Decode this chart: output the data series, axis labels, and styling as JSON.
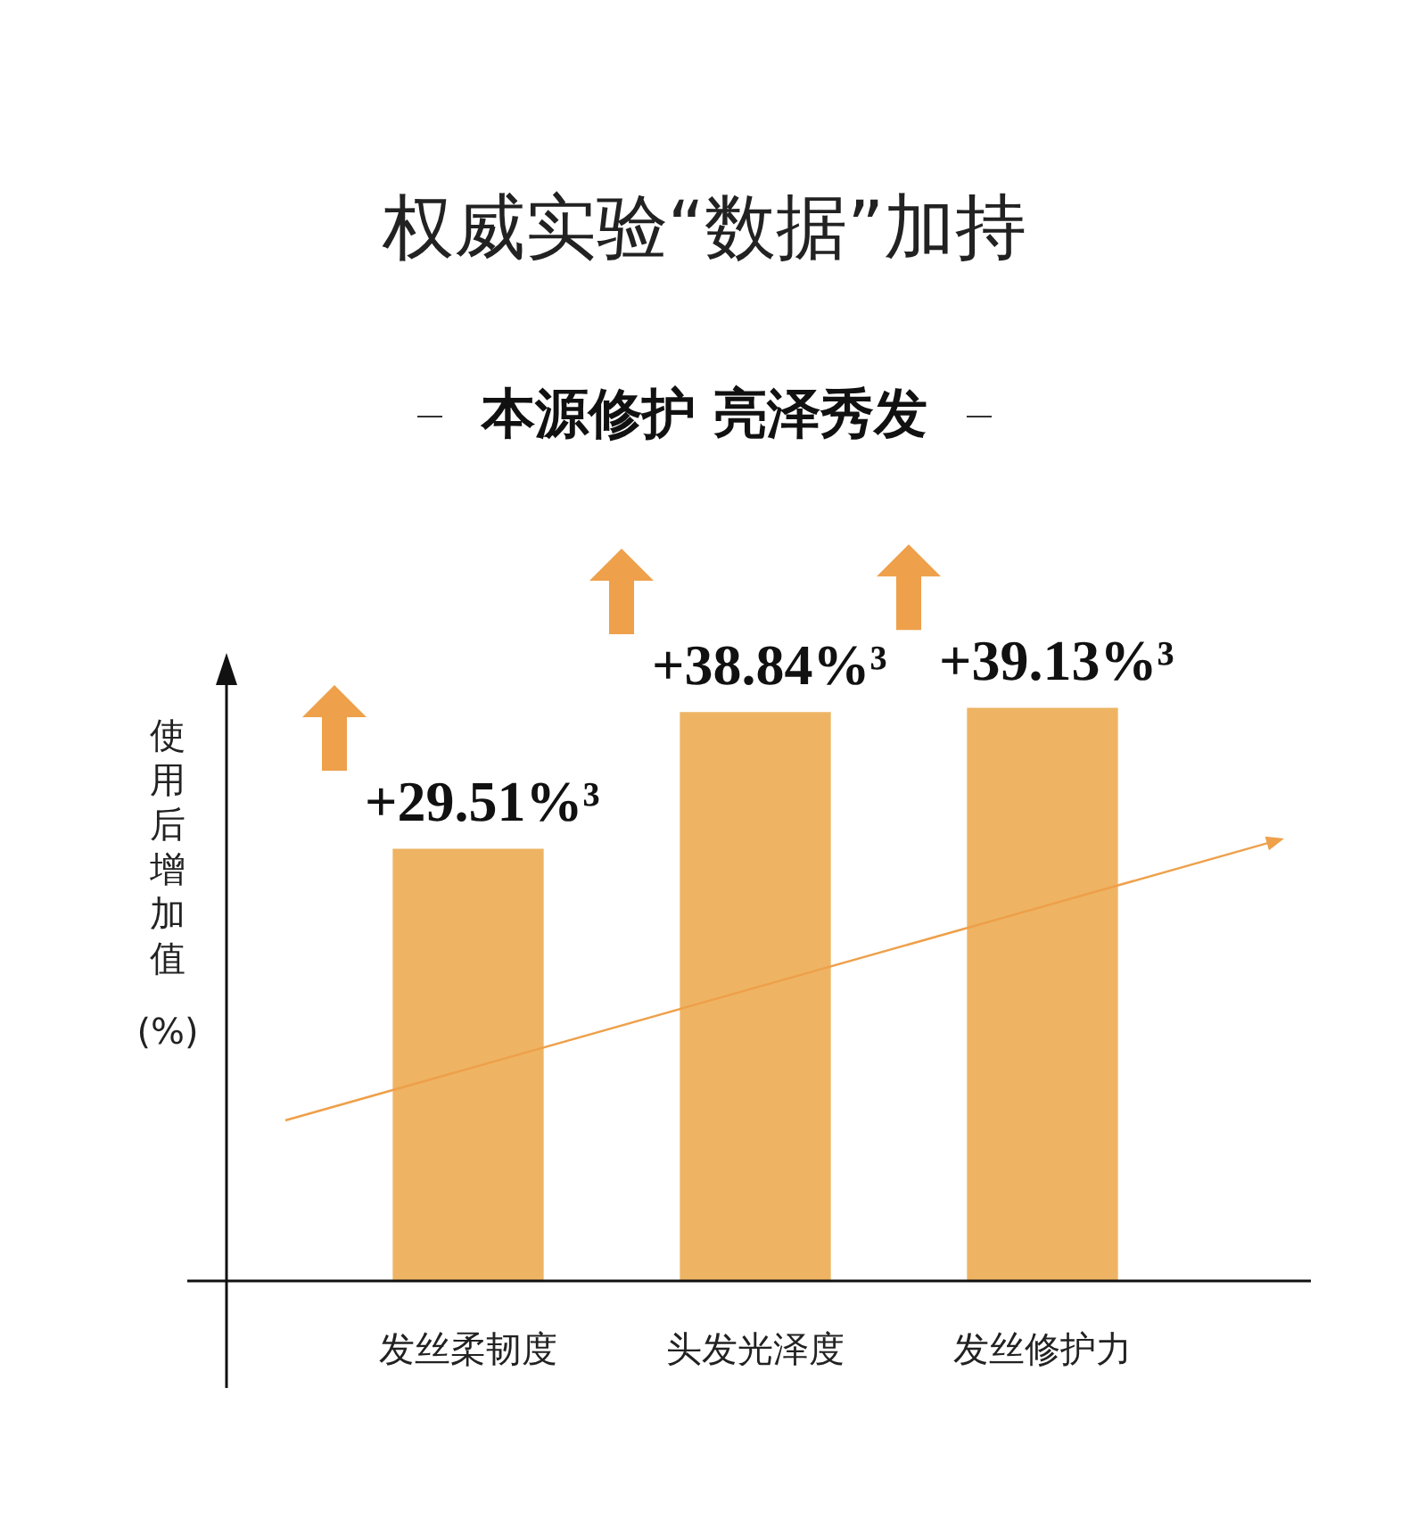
{
  "chart_data": {
    "type": "bar",
    "title": "权威实验“数据”加持",
    "subtitle": "本源修护 亮泽秀发",
    "ylabel": "使用后增加值(%)",
    "categories": [
      "发丝柔韧度",
      "头发光泽度",
      "发丝修护力"
    ],
    "values": [
      29.51,
      38.84,
      39.13
    ],
    "value_labels": [
      "+29.51%³",
      "+38.84%³",
      "+39.13%³"
    ],
    "color": "#eeb463",
    "grid": false,
    "legend": false
  }
}
